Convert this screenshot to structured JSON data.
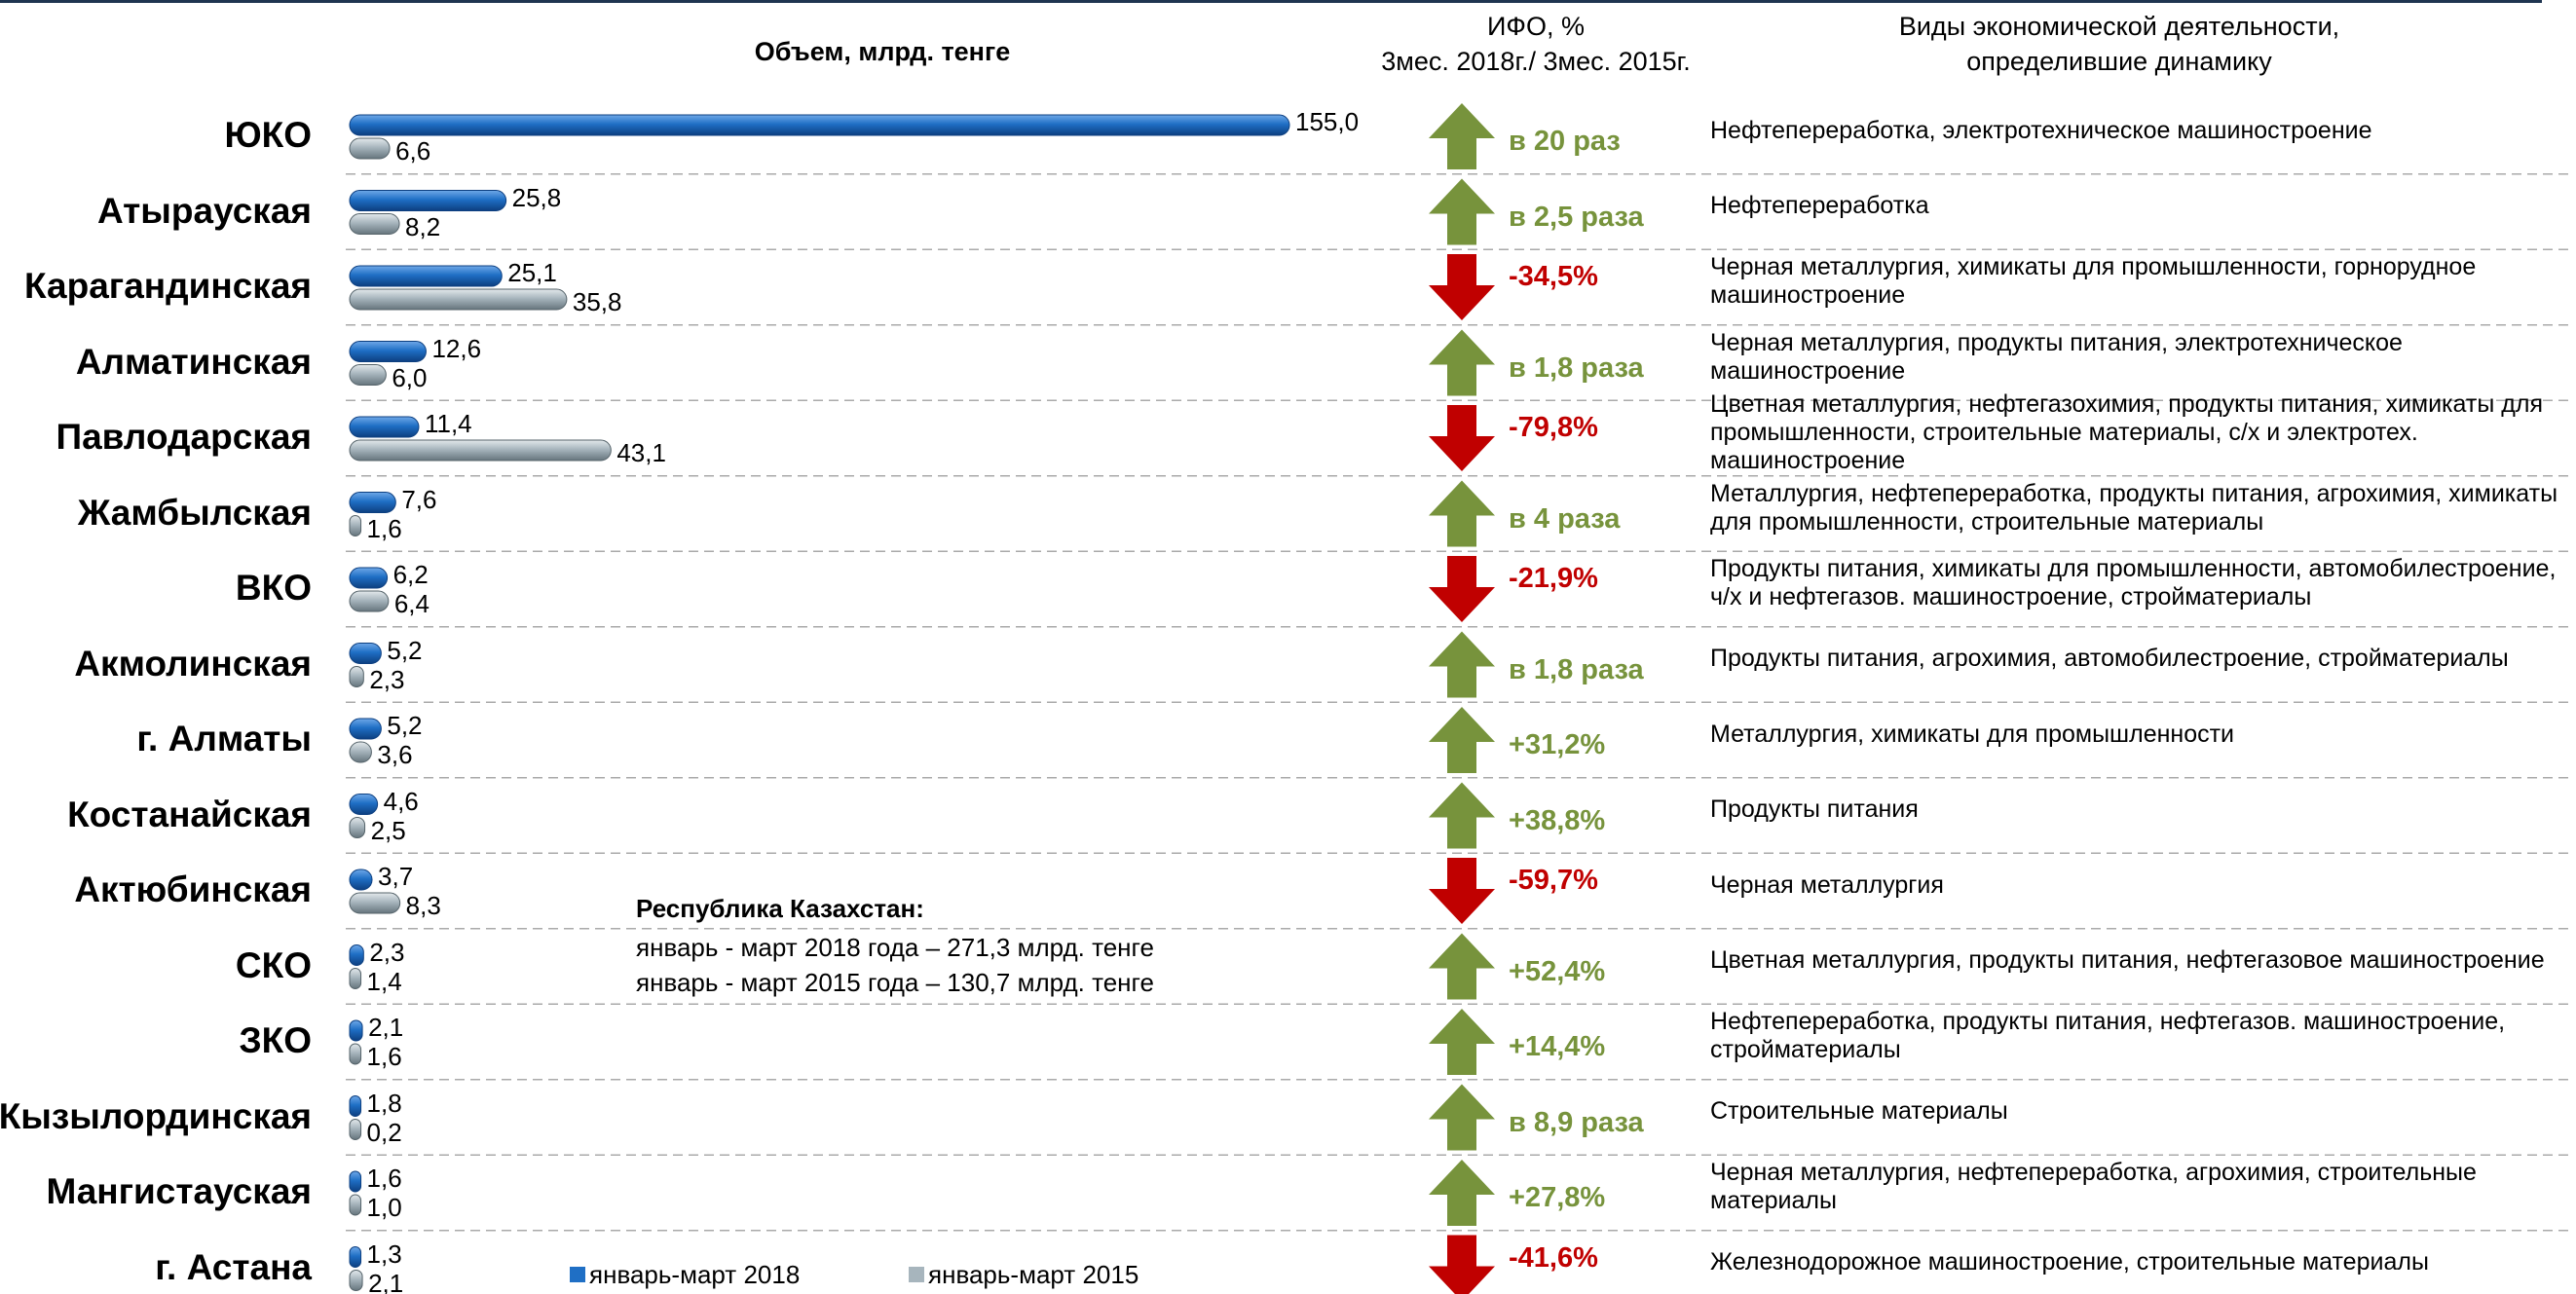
{
  "chart_data": {
    "type": "bar",
    "orientation": "horizontal",
    "title": "Объем, млрд. тенге",
    "categories": [
      "ЮКО",
      "Атырауская",
      "Карагандинская",
      "Алматинская",
      "Павлодарская",
      "Жамбылская",
      "ВКО",
      "Акмолинская",
      "г. Алматы",
      "Костанайская",
      "Актюбинская",
      "СКО",
      "ЗКО",
      "Кызылординская",
      "Мангистауская",
      "г. Астана"
    ],
    "series": [
      {
        "name": "январь-март 2018",
        "color": "#1f6fc5",
        "values": [
          155.0,
          25.8,
          25.1,
          12.6,
          11.4,
          7.6,
          6.2,
          5.2,
          5.2,
          4.6,
          3.7,
          2.3,
          2.1,
          1.8,
          1.6,
          1.3
        ],
        "value_labels": [
          "155,0",
          "25,8",
          "25,1",
          "12,6",
          "11,4",
          "7,6",
          "6,2",
          "5,2",
          "5,2",
          "4,6",
          "3,7",
          "2,3",
          "2,1",
          "1,8",
          "1,6",
          "1,3"
        ]
      },
      {
        "name": "январь-март 2015",
        "color": "#a7b5bd",
        "values": [
          6.6,
          8.2,
          35.8,
          6.0,
          43.1,
          1.6,
          6.4,
          2.3,
          3.6,
          2.5,
          8.3,
          1.4,
          1.6,
          0.2,
          1.0,
          2.1
        ],
        "value_labels": [
          "6,6",
          "8,2",
          "35,8",
          "6,0",
          "43,1",
          "1,6",
          "6,4",
          "2,3",
          "3,6",
          "2,5",
          "8,3",
          "1,4",
          "1,6",
          "0,2",
          "1,0",
          "2,1"
        ]
      }
    ],
    "ifo": {
      "title": "ИФО, %",
      "subtitle": "3мес. 2018г./ 3мес. 2015г.",
      "labels": [
        "в 20 раз",
        "в 2,5 раза",
        "-34,5%",
        "в 1,8 раза",
        "-79,8%",
        "в 4 раза",
        "-21,9%",
        "в 1,8 раза",
        "+31,2%",
        "+38,8%",
        "-59,7%",
        "+52,4%",
        "+14,4%",
        "в 8,9 раза",
        "+27,8%",
        "-41,6%"
      ],
      "directions": [
        "up",
        "up",
        "down",
        "up",
        "down",
        "up",
        "down",
        "up",
        "up",
        "up",
        "down",
        "up",
        "up",
        "up",
        "up",
        "down"
      ],
      "colors": {
        "up": "#77933c",
        "down": "#c00000"
      }
    },
    "activities": {
      "title": [
        "Виды экономической деятельности,",
        "определившие динамику"
      ],
      "items": [
        "Нефтепереработка, электротехническое машиностроение",
        "Нефтепереработка",
        "Черная металлургия, химикаты для промышленности, горнорудное машиностроение",
        "Черная металлургия, продукты питания, электротехническое машиностроение",
        "Цветная металлургия, нефтегазохимия, продукты питания, химикаты для промышленности, строительные материалы, с/х и электротех. машиностроение",
        "Металлургия, нефтепереработка, продукты питания, агрохимия, химикаты для промышленности, строительные материалы",
        "Продукты питания, химикаты для промышленности, автомобилестроение, ч/х и нефтегазов. машиностроение, стройматериалы",
        "Продукты питания, агрохимия, автомобилестроение, стройматериалы",
        "Металлургия, химикаты для промышленности",
        "Продукты питания",
        "Черная металлургия",
        "Цветная металлургия, продукты питания, нефтегазовое машиностроение",
        "Нефтепереработка, продукты питания, нефтегазов. машиностроение, стройматериалы",
        "Строительные материалы",
        "Черная металлургия, нефтепереработка, агрохимия, строительные материалы",
        "Железнодорожное машиностроение, строительные материалы"
      ]
    },
    "note": {
      "title": "Республика Казахстан:",
      "lines": [
        "январь - март 2018 года – 271,3 млрд. тенге",
        "январь - март 2015 года – 130,7 млрд. тенге"
      ]
    }
  }
}
